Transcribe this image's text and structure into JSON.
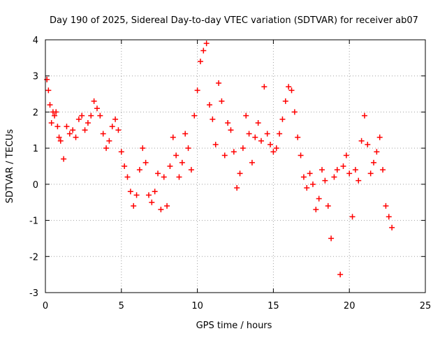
{
  "chart_data": {
    "type": "scatter",
    "title": "Day 190 of 2025, Sidereal Day-to-day VTEC variation (SDTVAR) for receiver ab07",
    "xlabel": "GPS time / hours",
    "ylabel": "SDTVAR / TECUs",
    "xlim": [
      0,
      25
    ],
    "ylim": [
      -3,
      4
    ],
    "xticks": [
      0,
      5,
      10,
      15,
      20,
      25
    ],
    "yticks": [
      -3,
      -2,
      -1,
      0,
      1,
      2,
      3,
      4
    ],
    "xtick_labels": [
      "0",
      "5",
      "10",
      "15",
      "20",
      "25"
    ],
    "ytick_labels": [
      "-3",
      "-2",
      "-1",
      "0",
      "1",
      "2",
      "3",
      "4"
    ],
    "grid": true,
    "marker": "+",
    "series": [
      {
        "name": "SDTVAR",
        "color": "#ff0000",
        "x": [
          0.1,
          0.2,
          0.3,
          0.4,
          0.5,
          0.6,
          0.7,
          0.8,
          0.9,
          1.0,
          1.2,
          1.4,
          1.6,
          1.8,
          2.0,
          2.2,
          2.4,
          2.6,
          2.8,
          3.0,
          3.2,
          3.4,
          3.6,
          3.8,
          4.0,
          4.2,
          4.4,
          4.6,
          4.8,
          5.0,
          5.2,
          5.4,
          5.6,
          5.8,
          6.0,
          6.2,
          6.4,
          6.6,
          6.8,
          7.0,
          7.2,
          7.4,
          7.6,
          7.8,
          8.0,
          8.2,
          8.4,
          8.6,
          8.8,
          9.0,
          9.2,
          9.4,
          9.6,
          9.8,
          10.0,
          10.2,
          10.4,
          10.6,
          10.8,
          11.0,
          11.2,
          11.4,
          11.6,
          11.8,
          12.0,
          12.2,
          12.4,
          12.6,
          12.8,
          13.0,
          13.2,
          13.4,
          13.6,
          13.8,
          14.0,
          14.2,
          14.4,
          14.6,
          14.8,
          15.0,
          15.2,
          15.4,
          15.6,
          15.8,
          16.0,
          16.2,
          16.4,
          16.6,
          16.8,
          17.0,
          17.2,
          17.4,
          17.6,
          17.8,
          18.0,
          18.2,
          18.4,
          18.6,
          18.8,
          19.0,
          19.2,
          19.4,
          19.6,
          19.8,
          20.0,
          20.2,
          20.4,
          20.6,
          20.8,
          21.0,
          21.2,
          21.4,
          21.6,
          21.8,
          22.0,
          22.2,
          22.4,
          22.6,
          22.8
        ],
        "y": [
          2.9,
          2.6,
          2.2,
          1.7,
          2.0,
          1.9,
          2.0,
          1.6,
          1.3,
          1.2,
          0.7,
          1.6,
          1.4,
          1.5,
          1.3,
          1.8,
          1.9,
          1.5,
          1.7,
          1.9,
          2.3,
          2.1,
          1.9,
          1.4,
          1.0,
          1.2,
          1.6,
          1.8,
          1.5,
          0.9,
          0.5,
          0.2,
          -0.2,
          -0.6,
          -0.3,
          0.4,
          1.0,
          0.6,
          -0.3,
          -0.5,
          -0.2,
          0.3,
          -0.7,
          0.2,
          -0.6,
          0.5,
          1.3,
          0.8,
          0.2,
          0.6,
          1.4,
          1.0,
          0.4,
          1.9,
          2.6,
          3.4,
          3.7,
          3.9,
          2.2,
          1.8,
          1.1,
          2.8,
          2.3,
          0.8,
          1.7,
          1.5,
          0.9,
          -0.1,
          0.3,
          1.0,
          1.9,
          1.4,
          0.6,
          1.3,
          1.7,
          1.2,
          2.7,
          1.4,
          1.1,
          0.9,
          1.0,
          1.4,
          1.8,
          2.3,
          2.7,
          2.6,
          2.0,
          1.3,
          0.8,
          0.2,
          -0.1,
          0.3,
          0.0,
          -0.7,
          -0.4,
          0.4,
          0.1,
          -0.6,
          -1.5,
          0.2,
          0.4,
          -2.5,
          0.5,
          0.8,
          0.3,
          -0.9,
          0.4,
          0.1,
          1.2,
          1.9,
          1.1,
          0.3,
          0.6,
          0.9,
          1.3,
          0.4,
          -0.6,
          -0.9,
          -1.2
        ]
      }
    ]
  }
}
